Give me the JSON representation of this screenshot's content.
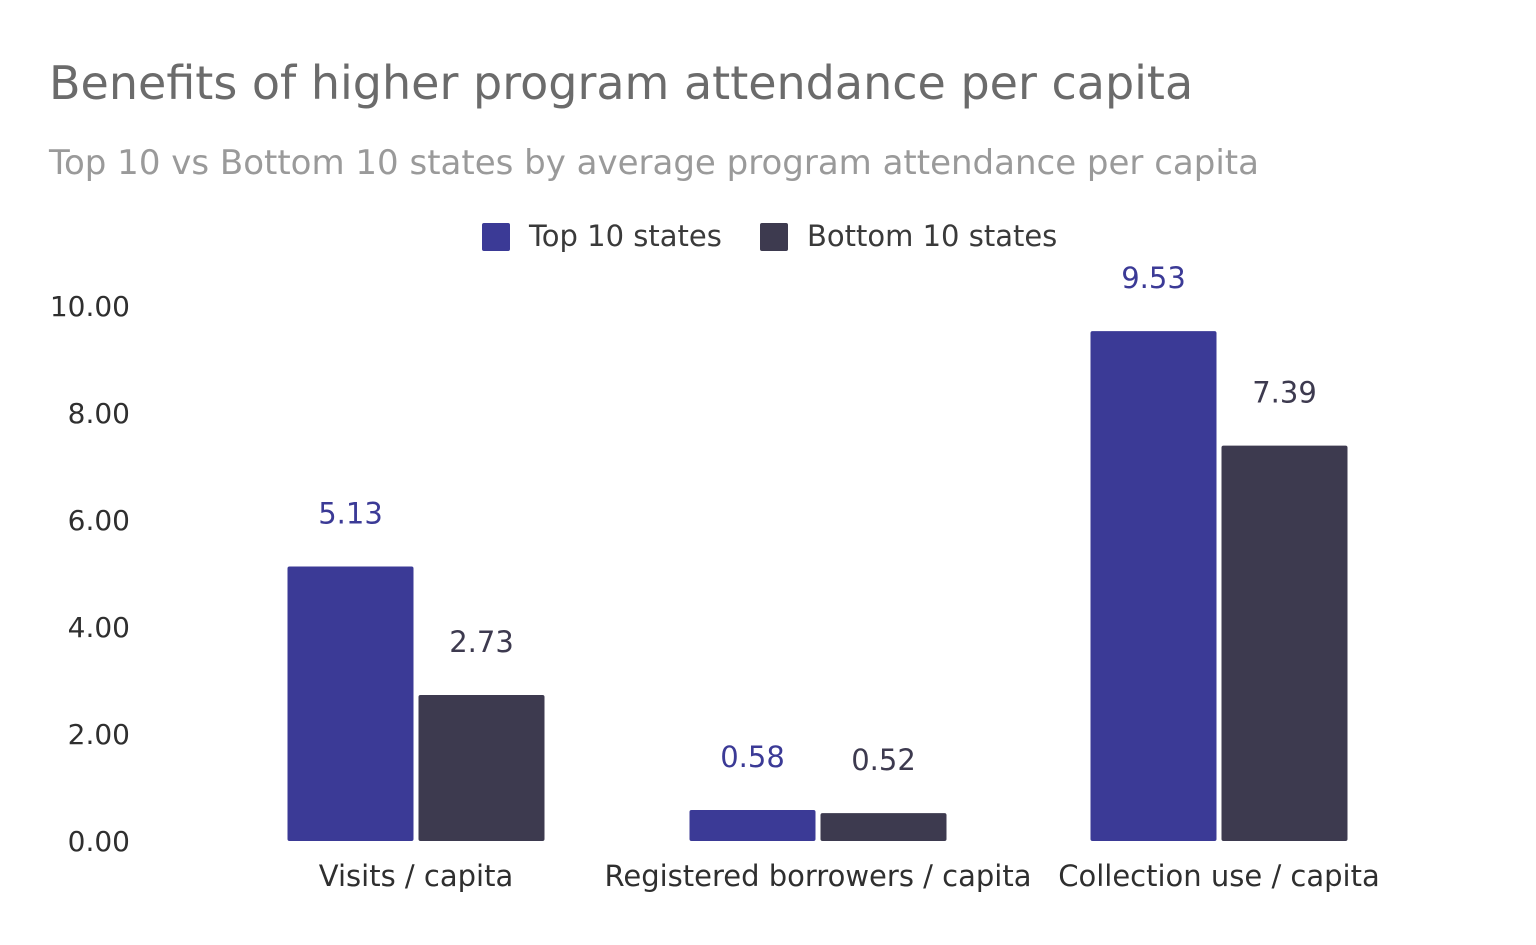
{
  "chart_data": {
    "type": "bar",
    "title": "Benefits of higher program attendance per capita",
    "subtitle": "Top 10 vs Bottom 10 states by average program attendance per capita",
    "categories": [
      "Visits / capita",
      "Registered borrowers / capita",
      "Collection use / capita"
    ],
    "series": [
      {
        "name": "Top 10 states",
        "values": [
          5.13,
          0.58,
          9.53
        ],
        "labels": [
          "5.13",
          "0.58",
          "9.53"
        ],
        "color": "#3b3a96"
      },
      {
        "name": "Bottom 10 states",
        "values": [
          2.73,
          0.52,
          7.39
        ],
        "labels": [
          "2.73",
          "0.52",
          "7.39"
        ],
        "color": "#3d3a4f"
      }
    ],
    "yticks": [
      "0.00",
      "2.00",
      "4.00",
      "6.00",
      "8.00",
      "10.00"
    ],
    "ylim": [
      0,
      10
    ],
    "xlabel": "",
    "ylabel": "",
    "grid": false,
    "legend": "top-center"
  }
}
